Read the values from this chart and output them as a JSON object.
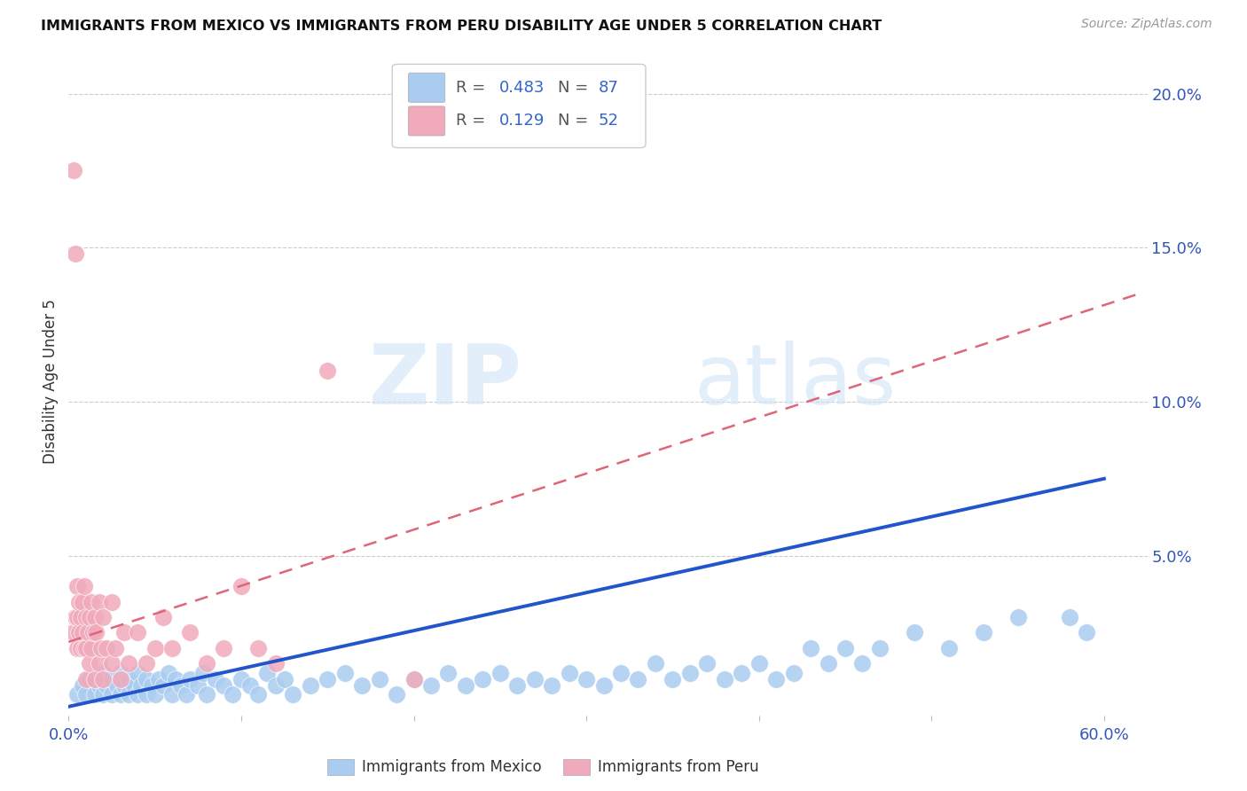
{
  "title": "IMMIGRANTS FROM MEXICO VS IMMIGRANTS FROM PERU DISABILITY AGE UNDER 5 CORRELATION CHART",
  "source": "Source: ZipAtlas.com",
  "ylabel": "Disability Age Under 5",
  "right_yticks": [
    "5.0%",
    "10.0%",
    "15.0%",
    "20.0%"
  ],
  "right_ytick_vals": [
    0.05,
    0.1,
    0.15,
    0.2
  ],
  "xlim": [
    0.0,
    0.625
  ],
  "ylim": [
    -0.002,
    0.215
  ],
  "legend_r_mexico": "0.483",
  "legend_n_mexico": "87",
  "legend_r_peru": "0.129",
  "legend_n_peru": "52",
  "mexico_color": "#aaccf0",
  "peru_color": "#f0aabb",
  "mexico_line_color": "#2255cc",
  "peru_line_color": "#dd6677",
  "watermark_zip": "ZIP",
  "watermark_atlas": "atlas",
  "mexico_scatter_x": [
    0.005,
    0.008,
    0.01,
    0.012,
    0.015,
    0.015,
    0.018,
    0.02,
    0.02,
    0.022,
    0.025,
    0.025,
    0.028,
    0.03,
    0.03,
    0.032,
    0.035,
    0.035,
    0.038,
    0.04,
    0.04,
    0.042,
    0.045,
    0.045,
    0.048,
    0.05,
    0.052,
    0.055,
    0.058,
    0.06,
    0.062,
    0.065,
    0.068,
    0.07,
    0.075,
    0.078,
    0.08,
    0.085,
    0.09,
    0.095,
    0.1,
    0.105,
    0.11,
    0.115,
    0.12,
    0.125,
    0.13,
    0.14,
    0.15,
    0.16,
    0.17,
    0.18,
    0.19,
    0.2,
    0.21,
    0.22,
    0.23,
    0.24,
    0.25,
    0.26,
    0.27,
    0.28,
    0.29,
    0.3,
    0.31,
    0.32,
    0.33,
    0.34,
    0.35,
    0.36,
    0.37,
    0.38,
    0.39,
    0.4,
    0.41,
    0.42,
    0.43,
    0.44,
    0.45,
    0.46,
    0.47,
    0.49,
    0.51,
    0.53,
    0.55,
    0.58,
    0.59
  ],
  "mexico_scatter_y": [
    0.005,
    0.008,
    0.005,
    0.01,
    0.005,
    0.01,
    0.008,
    0.005,
    0.012,
    0.008,
    0.005,
    0.01,
    0.008,
    0.005,
    0.012,
    0.008,
    0.005,
    0.01,
    0.008,
    0.005,
    0.012,
    0.008,
    0.005,
    0.01,
    0.008,
    0.005,
    0.01,
    0.008,
    0.012,
    0.005,
    0.01,
    0.008,
    0.005,
    0.01,
    0.008,
    0.012,
    0.005,
    0.01,
    0.008,
    0.005,
    0.01,
    0.008,
    0.005,
    0.012,
    0.008,
    0.01,
    0.005,
    0.008,
    0.01,
    0.012,
    0.008,
    0.01,
    0.005,
    0.01,
    0.008,
    0.012,
    0.008,
    0.01,
    0.012,
    0.008,
    0.01,
    0.008,
    0.012,
    0.01,
    0.008,
    0.012,
    0.01,
    0.015,
    0.01,
    0.012,
    0.015,
    0.01,
    0.012,
    0.015,
    0.01,
    0.012,
    0.02,
    0.015,
    0.02,
    0.015,
    0.02,
    0.025,
    0.02,
    0.025,
    0.03,
    0.03,
    0.025
  ],
  "peru_scatter_x": [
    0.003,
    0.004,
    0.005,
    0.005,
    0.005,
    0.006,
    0.006,
    0.007,
    0.007,
    0.008,
    0.008,
    0.009,
    0.009,
    0.01,
    0.01,
    0.01,
    0.011,
    0.012,
    0.012,
    0.013,
    0.013,
    0.014,
    0.015,
    0.015,
    0.016,
    0.018,
    0.018,
    0.019,
    0.02,
    0.02,
    0.022,
    0.025,
    0.025,
    0.027,
    0.03,
    0.032,
    0.035,
    0.04,
    0.045,
    0.05,
    0.055,
    0.06,
    0.07,
    0.08,
    0.09,
    0.1,
    0.11,
    0.12,
    0.15,
    0.2,
    0.003,
    0.004
  ],
  "peru_scatter_y": [
    0.025,
    0.03,
    0.02,
    0.03,
    0.04,
    0.025,
    0.035,
    0.02,
    0.03,
    0.025,
    0.035,
    0.02,
    0.04,
    0.01,
    0.02,
    0.03,
    0.025,
    0.015,
    0.03,
    0.02,
    0.035,
    0.025,
    0.01,
    0.03,
    0.025,
    0.015,
    0.035,
    0.02,
    0.01,
    0.03,
    0.02,
    0.015,
    0.035,
    0.02,
    0.01,
    0.025,
    0.015,
    0.025,
    0.015,
    0.02,
    0.03,
    0.02,
    0.025,
    0.015,
    0.02,
    0.04,
    0.02,
    0.015,
    0.11,
    0.01,
    0.175,
    0.148
  ],
  "mexico_trend_x": [
    0.0,
    0.6
  ],
  "mexico_trend_y": [
    0.001,
    0.075
  ],
  "peru_trend_x": [
    0.0,
    0.62
  ],
  "peru_trend_y": [
    0.022,
    0.135
  ],
  "background_color": "#ffffff",
  "grid_color": "#cccccc"
}
